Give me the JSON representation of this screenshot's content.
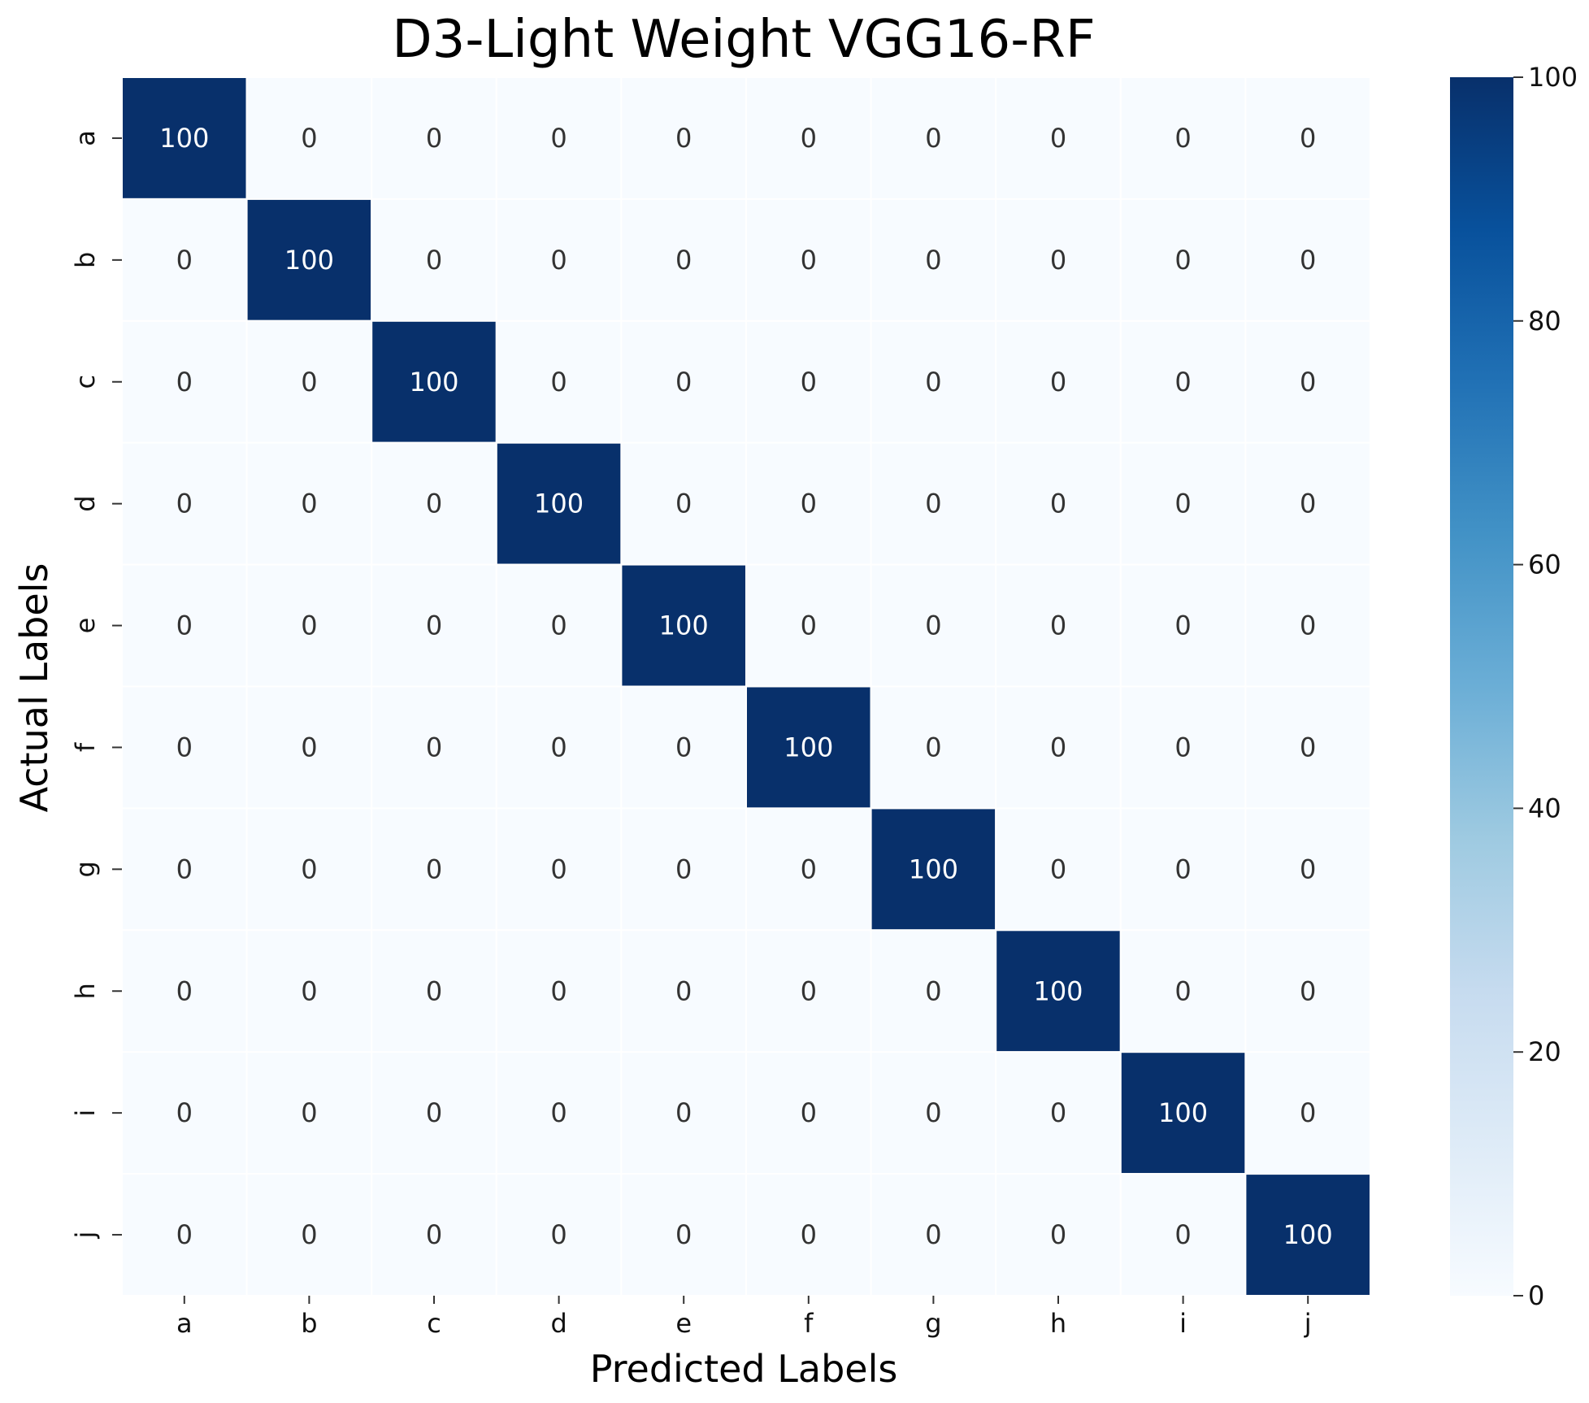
{
  "chart_data": {
    "type": "heatmap",
    "title": "D3-Light Weight VGG16-RF",
    "xlabel": "Predicted Labels",
    "ylabel": "Actual Labels",
    "x_categories": [
      "a",
      "b",
      "c",
      "d",
      "e",
      "f",
      "g",
      "h",
      "i",
      "j"
    ],
    "y_categories": [
      "a",
      "b",
      "c",
      "d",
      "e",
      "f",
      "g",
      "h",
      "i",
      "j"
    ],
    "values": [
      [
        100,
        0,
        0,
        0,
        0,
        0,
        0,
        0,
        0,
        0
      ],
      [
        0,
        100,
        0,
        0,
        0,
        0,
        0,
        0,
        0,
        0
      ],
      [
        0,
        0,
        100,
        0,
        0,
        0,
        0,
        0,
        0,
        0
      ],
      [
        0,
        0,
        0,
        100,
        0,
        0,
        0,
        0,
        0,
        0
      ],
      [
        0,
        0,
        0,
        0,
        100,
        0,
        0,
        0,
        0,
        0
      ],
      [
        0,
        0,
        0,
        0,
        0,
        100,
        0,
        0,
        0,
        0
      ],
      [
        0,
        0,
        0,
        0,
        0,
        0,
        100,
        0,
        0,
        0
      ],
      [
        0,
        0,
        0,
        0,
        0,
        0,
        0,
        100,
        0,
        0
      ],
      [
        0,
        0,
        0,
        0,
        0,
        0,
        0,
        0,
        100,
        0
      ],
      [
        0,
        0,
        0,
        0,
        0,
        0,
        0,
        0,
        0,
        100
      ]
    ],
    "colormap": "Blues",
    "color_low": "#f7fbff",
    "color_high": "#08306b",
    "colorbar": {
      "range": [
        0,
        100
      ],
      "ticks": [
        0,
        20,
        40,
        60,
        80,
        100
      ]
    }
  }
}
